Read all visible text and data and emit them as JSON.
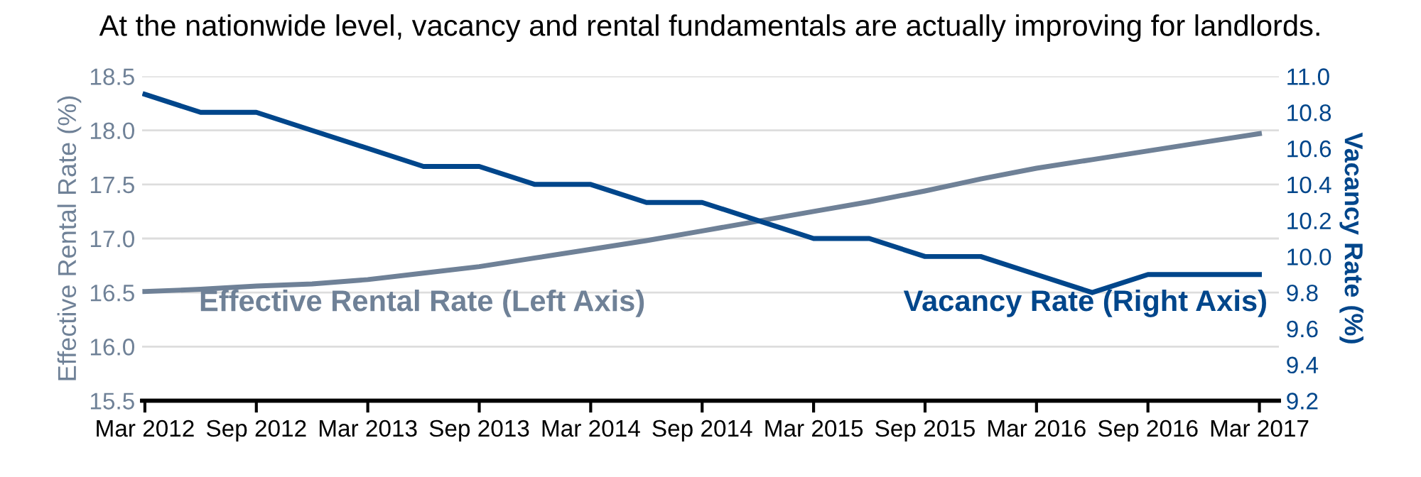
{
  "chart_data": {
    "type": "line",
    "title": "At the nationwide level, vacancy and rental fundamentals are actually improving for landlords.",
    "ylabel": "Effective Rental Rate (%)",
    "y2label": "Vacancy Rate (%)",
    "categories": [
      "Mar 2012",
      null,
      "Sep 2012",
      null,
      "Mar 2013",
      null,
      "Sep 2013",
      null,
      "Mar 2014",
      null,
      "Sep 2014",
      null,
      "Mar 2015",
      null,
      "Sep 2015",
      null,
      "Mar 2016",
      null,
      "Sep 2016",
      null,
      "Mar 2017"
    ],
    "series": [
      {
        "name": "Effective Rental Rate (Left Axis)",
        "color": "#6f8197",
        "values": [
          16.51,
          16.53,
          16.56,
          16.58,
          16.62,
          16.68,
          16.74,
          16.82,
          16.9,
          16.98,
          17.07,
          17.16,
          17.25,
          17.34,
          17.44,
          17.55,
          17.65,
          17.73,
          17.81,
          17.89,
          17.97
        ]
      },
      {
        "name": "Vacancy Rate (Right Axis)",
        "color": "#00468b",
        "axis": "y2",
        "values": [
          10.9,
          10.8,
          10.8,
          10.7,
          10.6,
          10.5,
          10.5,
          10.4,
          10.4,
          10.3,
          10.3,
          10.2,
          10.1,
          10.1,
          10.0,
          10.0,
          9.9,
          9.8,
          9.9,
          9.9,
          9.9
        ]
      }
    ],
    "ylim": [
      15.5,
      18.5
    ],
    "yticks": [
      {
        "value": 15.5,
        "label": "15.5"
      },
      {
        "value": 16,
        "label": "16.0"
      },
      {
        "value": 16.5,
        "label": "16.5"
      },
      {
        "value": 17,
        "label": "17.0"
      },
      {
        "value": 17.5,
        "label": "17.5"
      },
      {
        "value": 18,
        "label": "18.0"
      },
      {
        "value": 18.5,
        "label": "18.5"
      }
    ],
    "y2lim": [
      9.2,
      11.0
    ],
    "y2ticks": [
      9.2,
      9.4,
      9.6,
      9.8,
      {
        "value": 10,
        "label": "10.0"
      },
      10.2,
      10.4,
      10.6,
      10.8,
      {
        "value": 11,
        "label": "11.0"
      }
    ],
    "grid": "y",
    "legend": false
  }
}
